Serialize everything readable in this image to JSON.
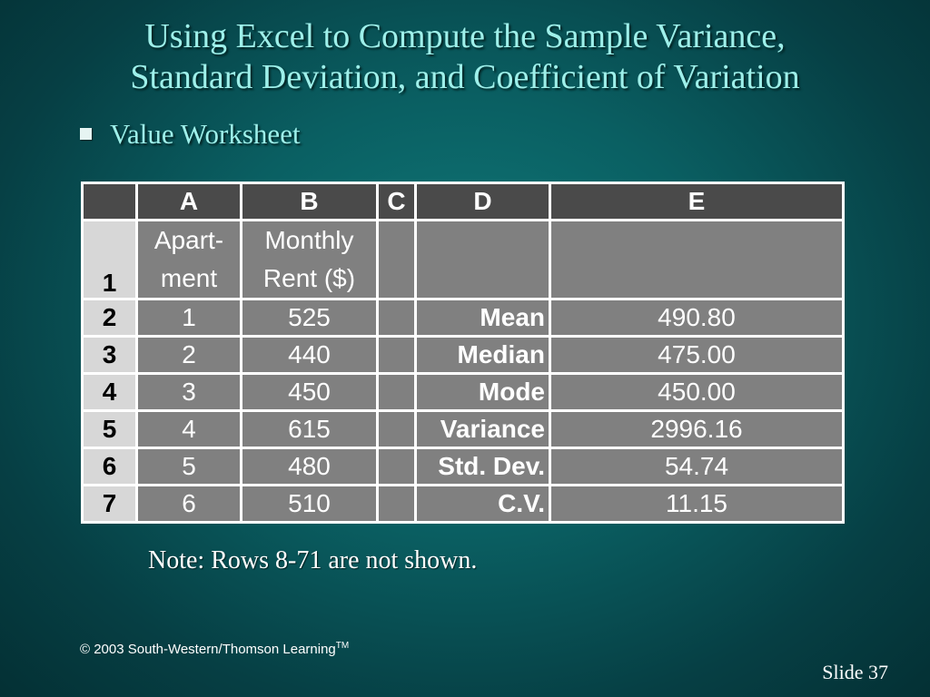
{
  "title": {
    "line1": "Using Excel to Compute the Sample Variance,",
    "line2": "Standard Deviation, and Coefficient of Variation"
  },
  "bullet": "Value Worksheet",
  "sheet": {
    "columns": [
      "",
      "A",
      "B",
      "C",
      "D",
      "E"
    ],
    "row1": {
      "num": "1",
      "a_line1": "Apart-",
      "a_line2": "ment",
      "b_line1": "Monthly",
      "b_line2": "Rent ($)"
    },
    "rows": [
      {
        "num": "2",
        "a": "1",
        "b": "525",
        "d": "Mean",
        "e": "490.80"
      },
      {
        "num": "3",
        "a": "2",
        "b": "440",
        "d": "Median",
        "e": "475.00"
      },
      {
        "num": "4",
        "a": "3",
        "b": "450",
        "d": "Mode",
        "e": "450.00"
      },
      {
        "num": "5",
        "a": "4",
        "b": "615",
        "d": "Variance",
        "e": "2996.16"
      },
      {
        "num": "6",
        "a": "5",
        "b": "480",
        "d": "Std. Dev.",
        "e": "54.74"
      },
      {
        "num": "7",
        "a": "6",
        "b": "510",
        "d": "C.V.",
        "e": "11.15"
      }
    ]
  },
  "note": "Note:  Rows 8-71 are not shown.",
  "footer": {
    "copyright": "© 2003  South-Western/Thomson Learning",
    "tm": "TM",
    "slide": "Slide 37"
  },
  "colors": {
    "title": "#9ef0ea",
    "header_cell": "#4a4a4a",
    "data_cell": "#808080",
    "row_header": "#d7d7d7"
  }
}
